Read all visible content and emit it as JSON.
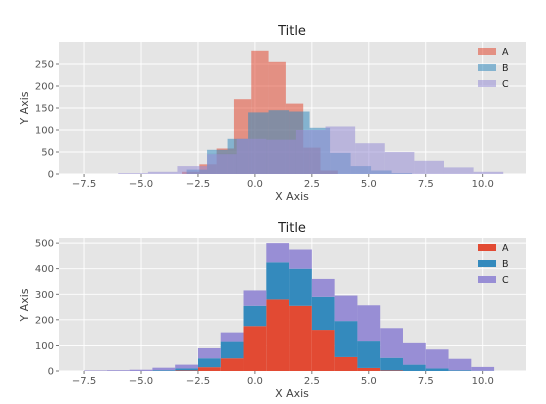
{
  "colors": {
    "background": "#e5e5e5",
    "grid": "#ffffff",
    "A": "#e24a33",
    "B": "#348abd",
    "C": "#988ed5"
  },
  "chart_data": [
    {
      "type": "histogram-overlay",
      "title": "Title",
      "xlabel": "X Axis",
      "ylabel": "Y Axis",
      "xlim": [
        -8.6,
        11.9
      ],
      "ylim": [
        0,
        300
      ],
      "grid": true,
      "legend": "top-right",
      "xticks": [
        -7.5,
        -5.0,
        -2.5,
        0.0,
        2.5,
        5.0,
        7.5,
        10.0
      ],
      "xtick_labels": [
        "−7.5",
        "−5.0",
        "−2.5",
        "0.0",
        "2.5",
        "5.0",
        "7.5",
        "10.0"
      ],
      "yticks": [
        0,
        50,
        100,
        150,
        200,
        250
      ],
      "ytick_labels": [
        "0",
        "50",
        "100",
        "150",
        "200",
        "250"
      ],
      "series": [
        {
          "name": "A",
          "color": "#e24a33",
          "alpha": 0.55,
          "bin_edges": [
            -3.2,
            -2.44,
            -1.68,
            -0.92,
            -0.16,
            0.6,
            1.36,
            2.12,
            2.88,
            3.64
          ],
          "counts": [
            5,
            22,
            58,
            170,
            280,
            255,
            160,
            60,
            8
          ]
        },
        {
          "name": "B",
          "color": "#348abd",
          "alpha": 0.55,
          "bin_edges": [
            -3.0,
            -2.1,
            -1.2,
            -0.3,
            0.6,
            1.5,
            2.4,
            3.3,
            4.2,
            5.1,
            6.0,
            6.9
          ],
          "counts": [
            10,
            55,
            80,
            140,
            145,
            142,
            105,
            48,
            18,
            8,
            2
          ]
        },
        {
          "name": "C",
          "color": "#988ed5",
          "alpha": 0.55,
          "bin_edges": [
            -6.0,
            -4.7,
            -3.4,
            -2.1,
            -0.8,
            0.5,
            1.8,
            3.1,
            4.4,
            5.7,
            7.0,
            8.3,
            9.6,
            10.9
          ],
          "counts": [
            2,
            5,
            18,
            45,
            80,
            78,
            100,
            108,
            70,
            50,
            30,
            15,
            5
          ]
        }
      ]
    },
    {
      "type": "histogram-stacked",
      "title": "Title",
      "xlabel": "X Axis",
      "ylabel": "Y Axis",
      "xlim": [
        -8.6,
        11.9
      ],
      "ylim": [
        0,
        520
      ],
      "grid": true,
      "legend": "top-right",
      "xticks": [
        -7.5,
        -5.0,
        -2.5,
        0.0,
        2.5,
        5.0,
        7.5,
        10.0
      ],
      "xtick_labels": [
        "−7.5",
        "−5.0",
        "−2.5",
        "0.0",
        "2.5",
        "5.0",
        "7.5",
        "10.0"
      ],
      "yticks": [
        0,
        100,
        200,
        300,
        400,
        500
      ],
      "ytick_labels": [
        "0",
        "100",
        "200",
        "300",
        "400",
        "500"
      ],
      "bin_edges": [
        -7.5,
        -6.5,
        -5.5,
        -4.5,
        -3.5,
        -2.5,
        -1.5,
        -0.5,
        0.5,
        1.5,
        2.5,
        3.5,
        4.5,
        5.5,
        6.5,
        7.5,
        8.5,
        9.5,
        10.5
      ],
      "series": [
        {
          "name": "A",
          "color": "#e24a33",
          "values": [
            0,
            0,
            0,
            0,
            2,
            15,
            50,
            175,
            280,
            255,
            160,
            55,
            12,
            2,
            0,
            0,
            0,
            0
          ]
        },
        {
          "name": "B",
          "color": "#348abd",
          "values": [
            0,
            0,
            0,
            3,
            8,
            35,
            65,
            80,
            145,
            145,
            130,
            140,
            105,
            50,
            25,
            10,
            3,
            1
          ]
        },
        {
          "name": "C",
          "color": "#988ed5",
          "values": [
            2,
            3,
            5,
            10,
            15,
            40,
            35,
            60,
            75,
            75,
            70,
            100,
            140,
            115,
            85,
            75,
            45,
            15
          ]
        }
      ]
    }
  ]
}
